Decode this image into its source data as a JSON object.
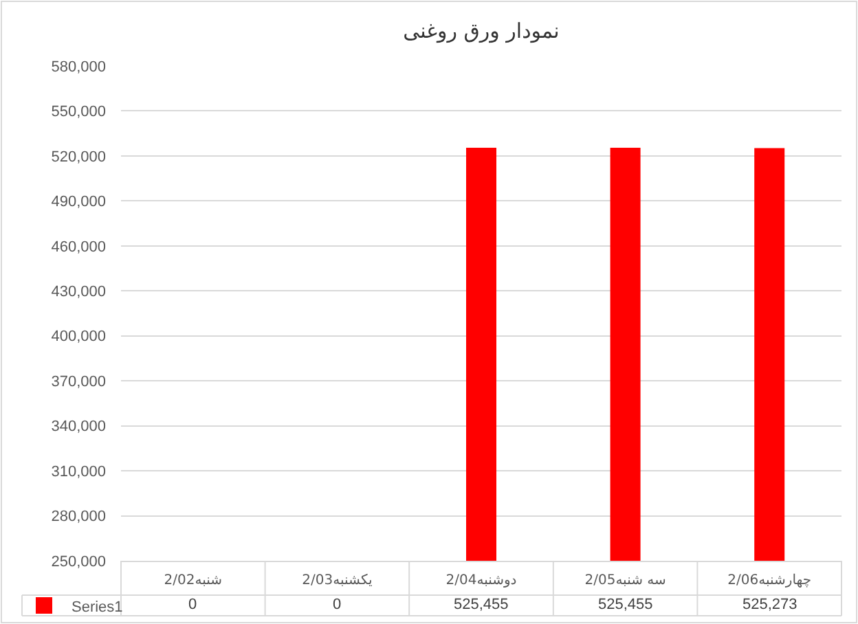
{
  "chart_data": {
    "type": "bar",
    "title": "نمودار ورق روغنی",
    "categories": [
      "شنبه2/02",
      "یکشنبه2/03",
      "دوشنبه2/04",
      "سه شنبه2/05",
      "چهارشنبه2/06"
    ],
    "series": [
      {
        "name": "Series1",
        "color": "#ff0000",
        "values": [
          null,
          null,
          525455,
          525455,
          525273
        ],
        "value_labels": [
          "0",
          "0",
          "525,455",
          "525,455",
          "525,273"
        ]
      }
    ],
    "ylim": [
      250000,
      580000
    ],
    "yticks": [
      {
        "value": 250000,
        "label": "250,000"
      },
      {
        "value": 280000,
        "label": "280,000"
      },
      {
        "value": 310000,
        "label": "310,000"
      },
      {
        "value": 340000,
        "label": "340,000"
      },
      {
        "value": 370000,
        "label": "370,000"
      },
      {
        "value": 400000,
        "label": "400,000"
      },
      {
        "value": 430000,
        "label": "430,000"
      },
      {
        "value": 460000,
        "label": "460,000"
      },
      {
        "value": 490000,
        "label": "490,000"
      },
      {
        "value": 520000,
        "label": "520,000"
      },
      {
        "value": 550000,
        "label": "550,000"
      },
      {
        "value": 580000,
        "label": "580,000"
      }
    ],
    "grid": "y",
    "legend": "bottom left"
  }
}
